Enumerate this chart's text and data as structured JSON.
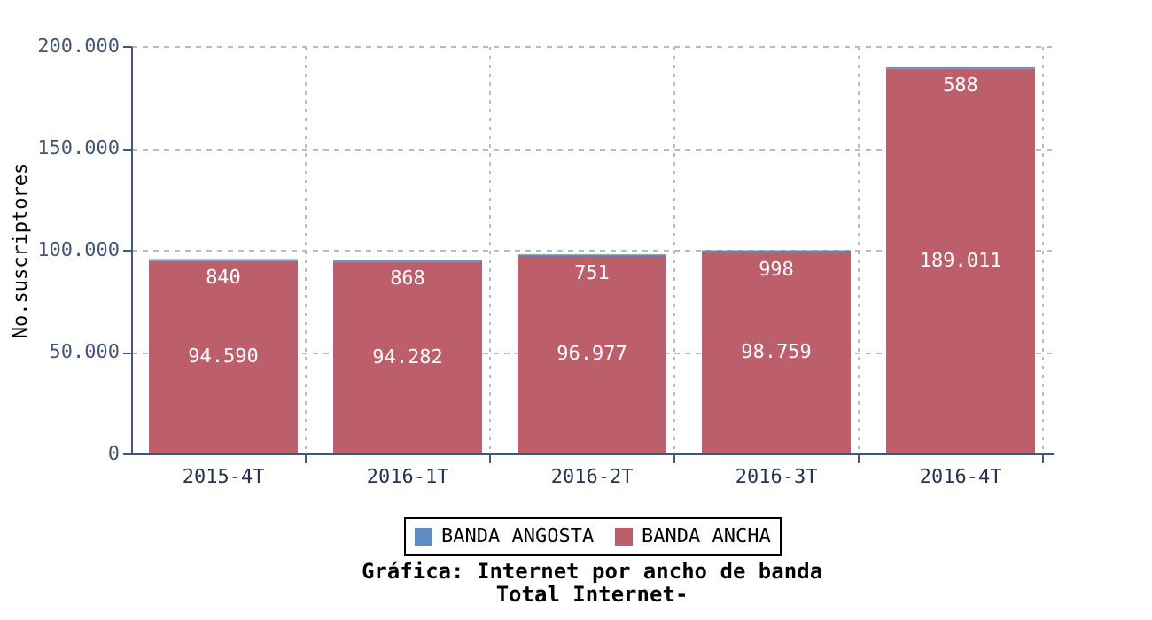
{
  "chart_data": {
    "type": "bar",
    "title": "Gráfica: Internet por ancho de banda",
    "subtitle": "Total Internet-",
    "ylabel": "No.suscriptores",
    "categories": [
      "2015-4T",
      "2016-1T",
      "2016-2T",
      "2016-3T",
      "2016-4T"
    ],
    "stacked": true,
    "series": [
      {
        "name": "BANDA ANCHA",
        "color": "#bd5f6b",
        "values": [
          94590,
          94282,
          96977,
          98759,
          189011
        ],
        "value_labels": [
          "94.590",
          "94.282",
          "96.977",
          "98.759",
          "189.011"
        ]
      },
      {
        "name": "BANDA ANGOSTA",
        "color": "#5b8dc0",
        "values": [
          840,
          868,
          751,
          998,
          588
        ],
        "value_labels": [
          "840",
          "868",
          "751",
          "998",
          "588"
        ]
      }
    ],
    "ylim": [
      0,
      200000
    ],
    "yticks": [
      {
        "value": 0,
        "label": "0"
      },
      {
        "value": 50000,
        "label": "50.000"
      },
      {
        "value": 100000,
        "label": "100.000"
      },
      {
        "value": 150000,
        "label": "150.000"
      },
      {
        "value": 200000,
        "label": "200.000"
      }
    ],
    "grid": true,
    "legend": "bottom"
  }
}
